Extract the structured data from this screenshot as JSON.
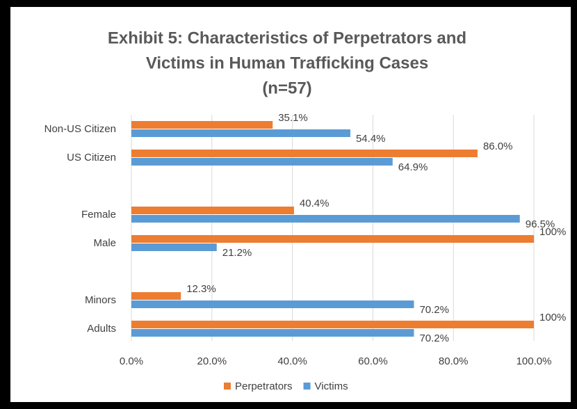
{
  "chart_data": {
    "type": "hbar",
    "title_lines": [
      "Exhibit 5: Characteristics of Perpetrators and",
      "Victims in Human Trafficking Cases",
      "(n=57)"
    ],
    "categories": [
      "Non-US Citizen",
      "US Citizen",
      null,
      "Female",
      "Male",
      null,
      "Minors",
      "Adults"
    ],
    "series": [
      {
        "name": "Perpetrators",
        "color": "#ed7d31",
        "values": [
          35.1,
          86.0,
          null,
          40.4,
          100,
          null,
          12.3,
          100
        ],
        "value_labels": [
          "35.1%",
          "86.0%",
          null,
          "40.4%",
          "100%",
          null,
          "12.3%",
          "100%"
        ]
      },
      {
        "name": "Victims",
        "color": "#5b9bd5",
        "values": [
          54.4,
          64.9,
          null,
          96.5,
          21.2,
          null,
          70.2,
          70.2
        ],
        "value_labels": [
          "54.4%",
          "64.9%",
          null,
          "96.5%",
          "21.2%",
          null,
          "70.2%",
          "70.2%"
        ]
      }
    ],
    "xlim": [
      0,
      100
    ],
    "xticks": [
      {
        "value": 0,
        "label": "0.0%"
      },
      {
        "value": 20,
        "label": "20.0%"
      },
      {
        "value": 40,
        "label": "40.0%"
      },
      {
        "value": 60,
        "label": "60.0%"
      },
      {
        "value": 80,
        "label": "80.0%"
      },
      {
        "value": 100,
        "label": "100.0%"
      }
    ],
    "grid": true,
    "legend": "bottom"
  }
}
